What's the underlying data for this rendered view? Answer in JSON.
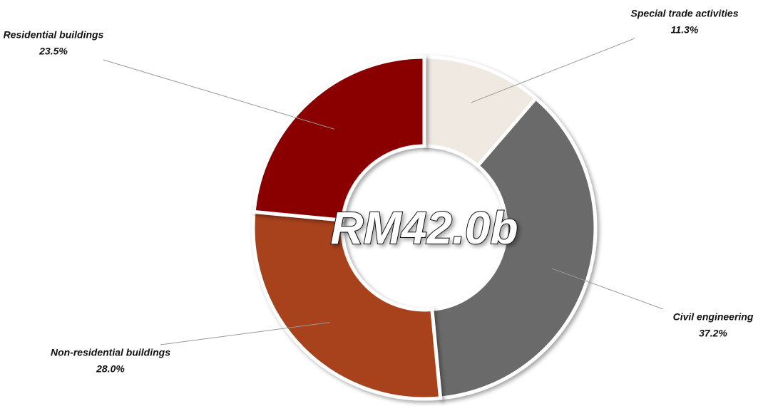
{
  "chart_data": {
    "type": "donut",
    "center_label": "RM42.0b",
    "categories": [
      "Special trade activities",
      "Civil engineering",
      "Non-residential buildings",
      "Residential buildings"
    ],
    "values": [
      11.3,
      37.2,
      28.0,
      23.5
    ],
    "value_labels": [
      "11.3%",
      "37.2%",
      "28.0%",
      "23.5%"
    ],
    "colors": [
      "#efe9e2",
      "#6a6a6a",
      "#a8431a",
      "#8a0505"
    ]
  }
}
